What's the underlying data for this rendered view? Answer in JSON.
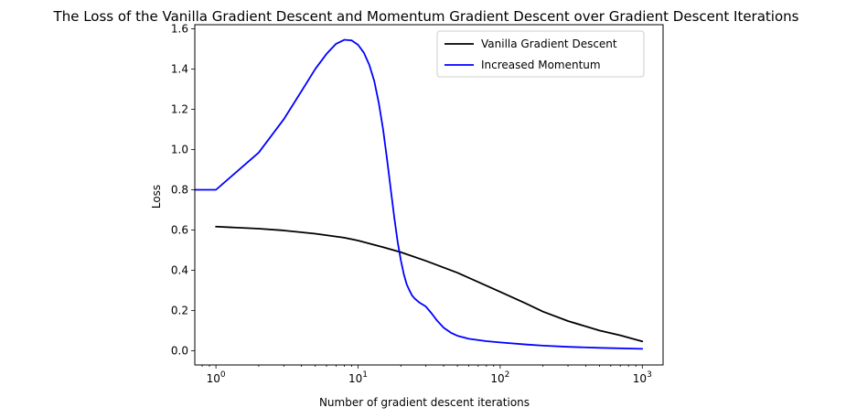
{
  "chart_data": {
    "type": "line",
    "title": "The Loss of the Vanilla Gradient Descent and Momentum Gradient Descent over Gradient Descent Iterations",
    "xlabel": "Number of gradient descent iterations",
    "ylabel": "Loss",
    "xscale": "log",
    "xlim": [
      0.71,
      1400
    ],
    "ylim": [
      -0.07,
      1.62
    ],
    "xticks": [
      {
        "value": 1,
        "base": "10",
        "exp": "0"
      },
      {
        "value": 10,
        "base": "10",
        "exp": "1"
      },
      {
        "value": 100,
        "base": "10",
        "exp": "2"
      },
      {
        "value": 1000,
        "base": "10",
        "exp": "3"
      }
    ],
    "yticks": [
      0.0,
      0.2,
      0.4,
      0.6,
      0.8,
      1.0,
      1.2,
      1.4,
      1.6
    ],
    "ytick_labels": [
      "0.0",
      "0.2",
      "0.4",
      "0.6",
      "0.8",
      "1.0",
      "1.2",
      "1.4",
      "1.6"
    ],
    "grid": false,
    "legend_position": "top-right",
    "series": [
      {
        "name": "Vanilla Gradient Descent",
        "color": "#000000",
        "x": [
          1,
          2,
          3,
          5,
          8,
          10,
          15,
          20,
          30,
          50,
          70,
          100,
          150,
          200,
          300,
          500,
          700,
          1000
        ],
        "y": [
          0.617,
          0.607,
          0.598,
          0.582,
          0.562,
          0.548,
          0.515,
          0.49,
          0.447,
          0.388,
          0.342,
          0.293,
          0.237,
          0.195,
          0.148,
          0.101,
          0.077,
          0.047
        ]
      },
      {
        "name": "Increased Momentum",
        "color": "#0000ff",
        "x": [
          0.71,
          1,
          2,
          3,
          4,
          5,
          6,
          7,
          8,
          9,
          10,
          11,
          12,
          13,
          14,
          15,
          16,
          17,
          18,
          19,
          20,
          21,
          22,
          23,
          24,
          25,
          27,
          30,
          33,
          36,
          40,
          45,
          50,
          60,
          80,
          100,
          150,
          200,
          300,
          500,
          1000
        ],
        "y": [
          0.8,
          0.8,
          0.985,
          1.15,
          1.29,
          1.4,
          1.475,
          1.525,
          1.545,
          1.542,
          1.52,
          1.48,
          1.42,
          1.34,
          1.23,
          1.1,
          0.95,
          0.8,
          0.66,
          0.54,
          0.45,
          0.38,
          0.33,
          0.3,
          0.275,
          0.26,
          0.24,
          0.22,
          0.185,
          0.15,
          0.115,
          0.09,
          0.075,
          0.06,
          0.048,
          0.042,
          0.032,
          0.026,
          0.02,
          0.015,
          0.01
        ]
      }
    ]
  }
}
